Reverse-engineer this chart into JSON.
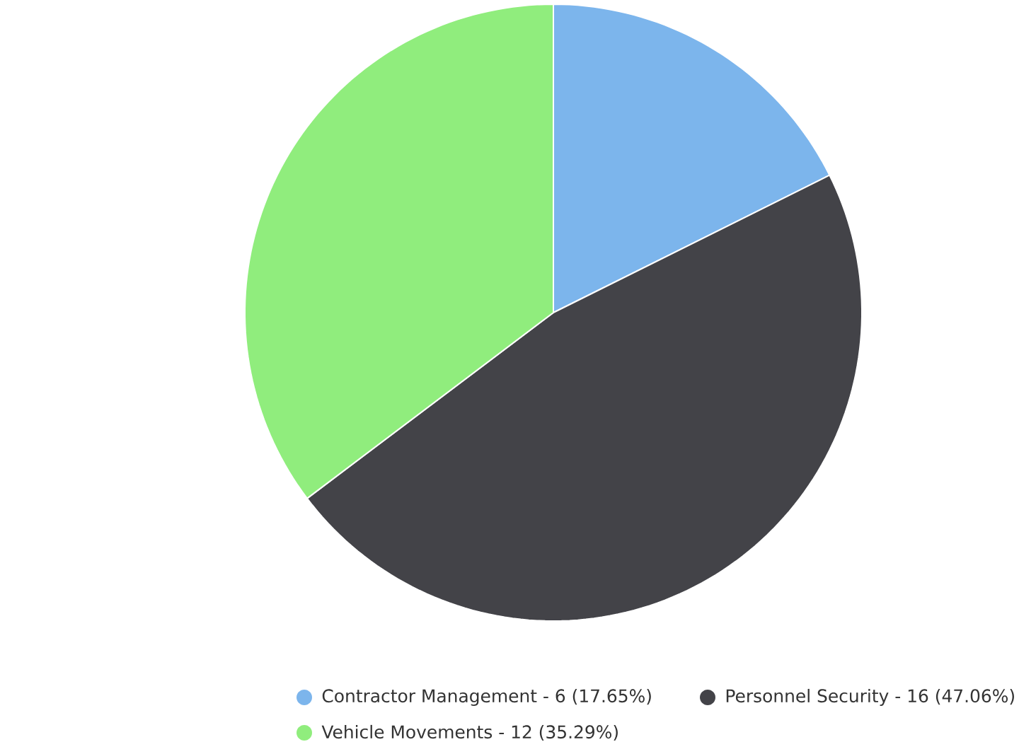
{
  "chart_data": {
    "type": "pie",
    "categories": [
      "Contractor Management - 6 (17.65%)",
      "Personnel Security - 16 (47.06%)",
      "Vehicle Movements - 12 (35.29%)"
    ],
    "values": [
      17.65,
      47.06,
      35.29
    ],
    "colors": [
      "#7cb5ec",
      "#434348",
      "#90ed7d"
    ],
    "legend": "bottom"
  }
}
